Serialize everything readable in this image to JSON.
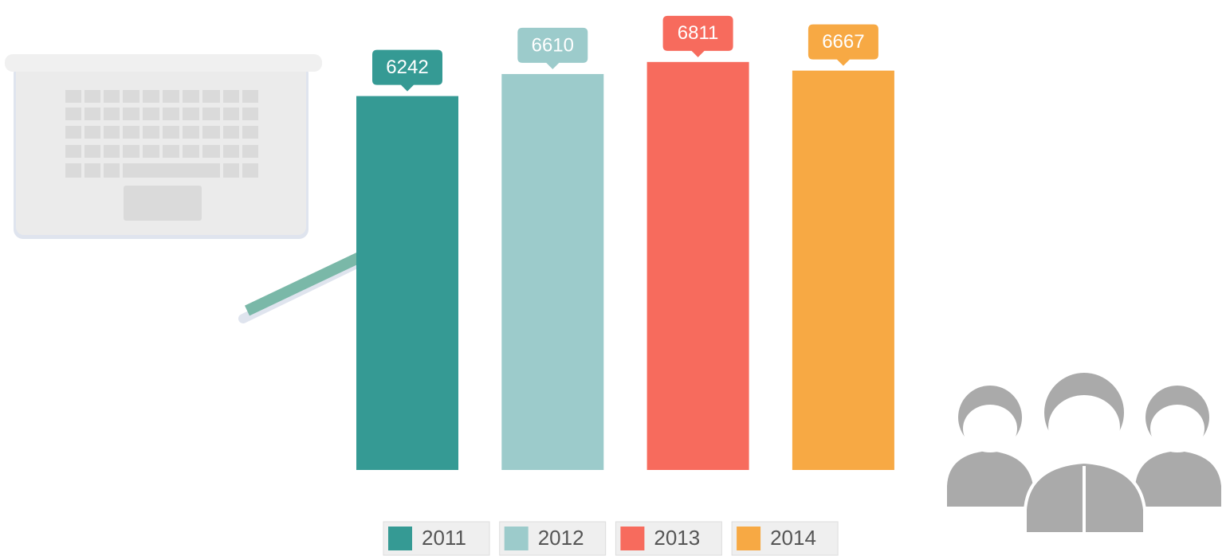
{
  "chart_data": {
    "type": "bar",
    "categories": [
      "2011",
      "2012",
      "2013",
      "2014"
    ],
    "values": [
      6242,
      6610,
      6811,
      6667
    ],
    "colors": [
      "#359a94",
      "#9ccbcb",
      "#f76b5d",
      "#f7a944"
    ]
  }
}
